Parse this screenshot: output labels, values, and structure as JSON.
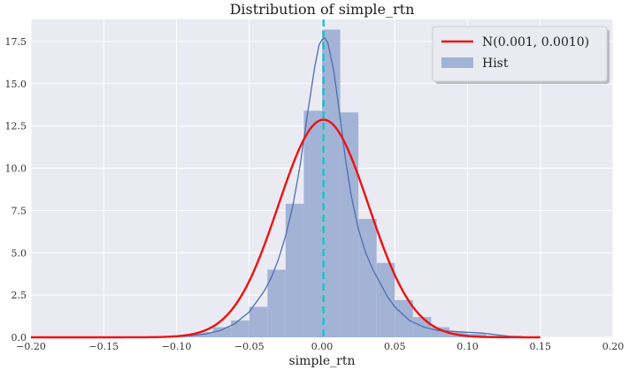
{
  "chart_data": {
    "type": "bar",
    "title": "Distribution of simple_rtn",
    "xlabel": "simple_rtn",
    "ylabel": "",
    "xlim": [
      -0.2,
      0.2
    ],
    "ylim": [
      0,
      18.8
    ],
    "grid": true,
    "legend_position": "top-right",
    "xticks": [
      -0.2,
      -0.15,
      -0.1,
      -0.05,
      0.0,
      0.05,
      0.1,
      0.15,
      0.2
    ],
    "xtick_labels": [
      "−0.20",
      "−0.15",
      "−0.10",
      "−0.05",
      "0.00",
      "0.05",
      "0.10",
      "0.15",
      "0.20"
    ],
    "yticks": [
      0,
      2.5,
      5,
      7.5,
      10,
      12.5,
      15,
      17.5
    ],
    "ytick_labels": [
      "0.0",
      "2.5",
      "5.0",
      "7.5",
      "10.0",
      "12.5",
      "15.0",
      "17.5"
    ],
    "histogram": {
      "name": "Hist",
      "color": "#a3b3d6",
      "bin_width": 0.0125,
      "bins": [
        {
          "x0": -0.1,
          "value": 0.1
        },
        {
          "x0": -0.0875,
          "value": 0.3
        },
        {
          "x0": -0.075,
          "value": 0.6
        },
        {
          "x0": -0.0625,
          "value": 1.0
        },
        {
          "x0": -0.05,
          "value": 1.8
        },
        {
          "x0": -0.0375,
          "value": 4.0
        },
        {
          "x0": -0.025,
          "value": 7.9
        },
        {
          "x0": -0.0125,
          "value": 13.4
        },
        {
          "x0": 0.0,
          "value": 18.2
        },
        {
          "x0": 0.0125,
          "value": 13.3
        },
        {
          "x0": 0.025,
          "value": 7.0
        },
        {
          "x0": 0.0375,
          "value": 4.4
        },
        {
          "x0": 0.05,
          "value": 2.2
        },
        {
          "x0": 0.0625,
          "value": 1.2
        },
        {
          "x0": 0.075,
          "value": 0.6
        },
        {
          "x0": 0.0875,
          "value": 0.3
        },
        {
          "x0": 0.1,
          "value": 0.2
        },
        {
          "x0": 0.1125,
          "value": 0.1
        },
        {
          "x0": 0.125,
          "value": 0.1
        }
      ]
    },
    "normal_curve": {
      "name": "N(0.001, 0.0010)",
      "color": "#ee1111",
      "mean": 0.001,
      "std": 0.031
    },
    "kde_curve": {
      "color": "#4c6fb0",
      "x": [
        -0.2,
        -0.12,
        -0.1,
        -0.09,
        -0.08,
        -0.07,
        -0.06,
        -0.05,
        -0.04,
        -0.035,
        -0.03,
        -0.025,
        -0.02,
        -0.015,
        -0.01,
        -0.005,
        -0.002,
        0.0,
        0.002,
        0.004,
        0.008,
        0.012,
        0.016,
        0.02,
        0.025,
        0.03,
        0.035,
        0.04,
        0.045,
        0.05,
        0.06,
        0.07,
        0.08,
        0.09,
        0.1,
        0.11,
        0.12,
        0.13,
        0.14
      ],
      "y": [
        0.0,
        0.02,
        0.05,
        0.1,
        0.2,
        0.4,
        0.8,
        1.5,
        2.7,
        3.5,
        4.6,
        6.0,
        7.8,
        10.2,
        13.2,
        16.0,
        17.3,
        17.6,
        17.7,
        17.4,
        15.8,
        13.3,
        10.6,
        8.4,
        6.4,
        5.0,
        4.0,
        3.2,
        2.4,
        1.8,
        1.0,
        0.6,
        0.4,
        0.35,
        0.3,
        0.25,
        0.15,
        0.05,
        0.0
      ]
    },
    "vline": {
      "x": 0.001,
      "color": "#1ec1cc"
    }
  }
}
